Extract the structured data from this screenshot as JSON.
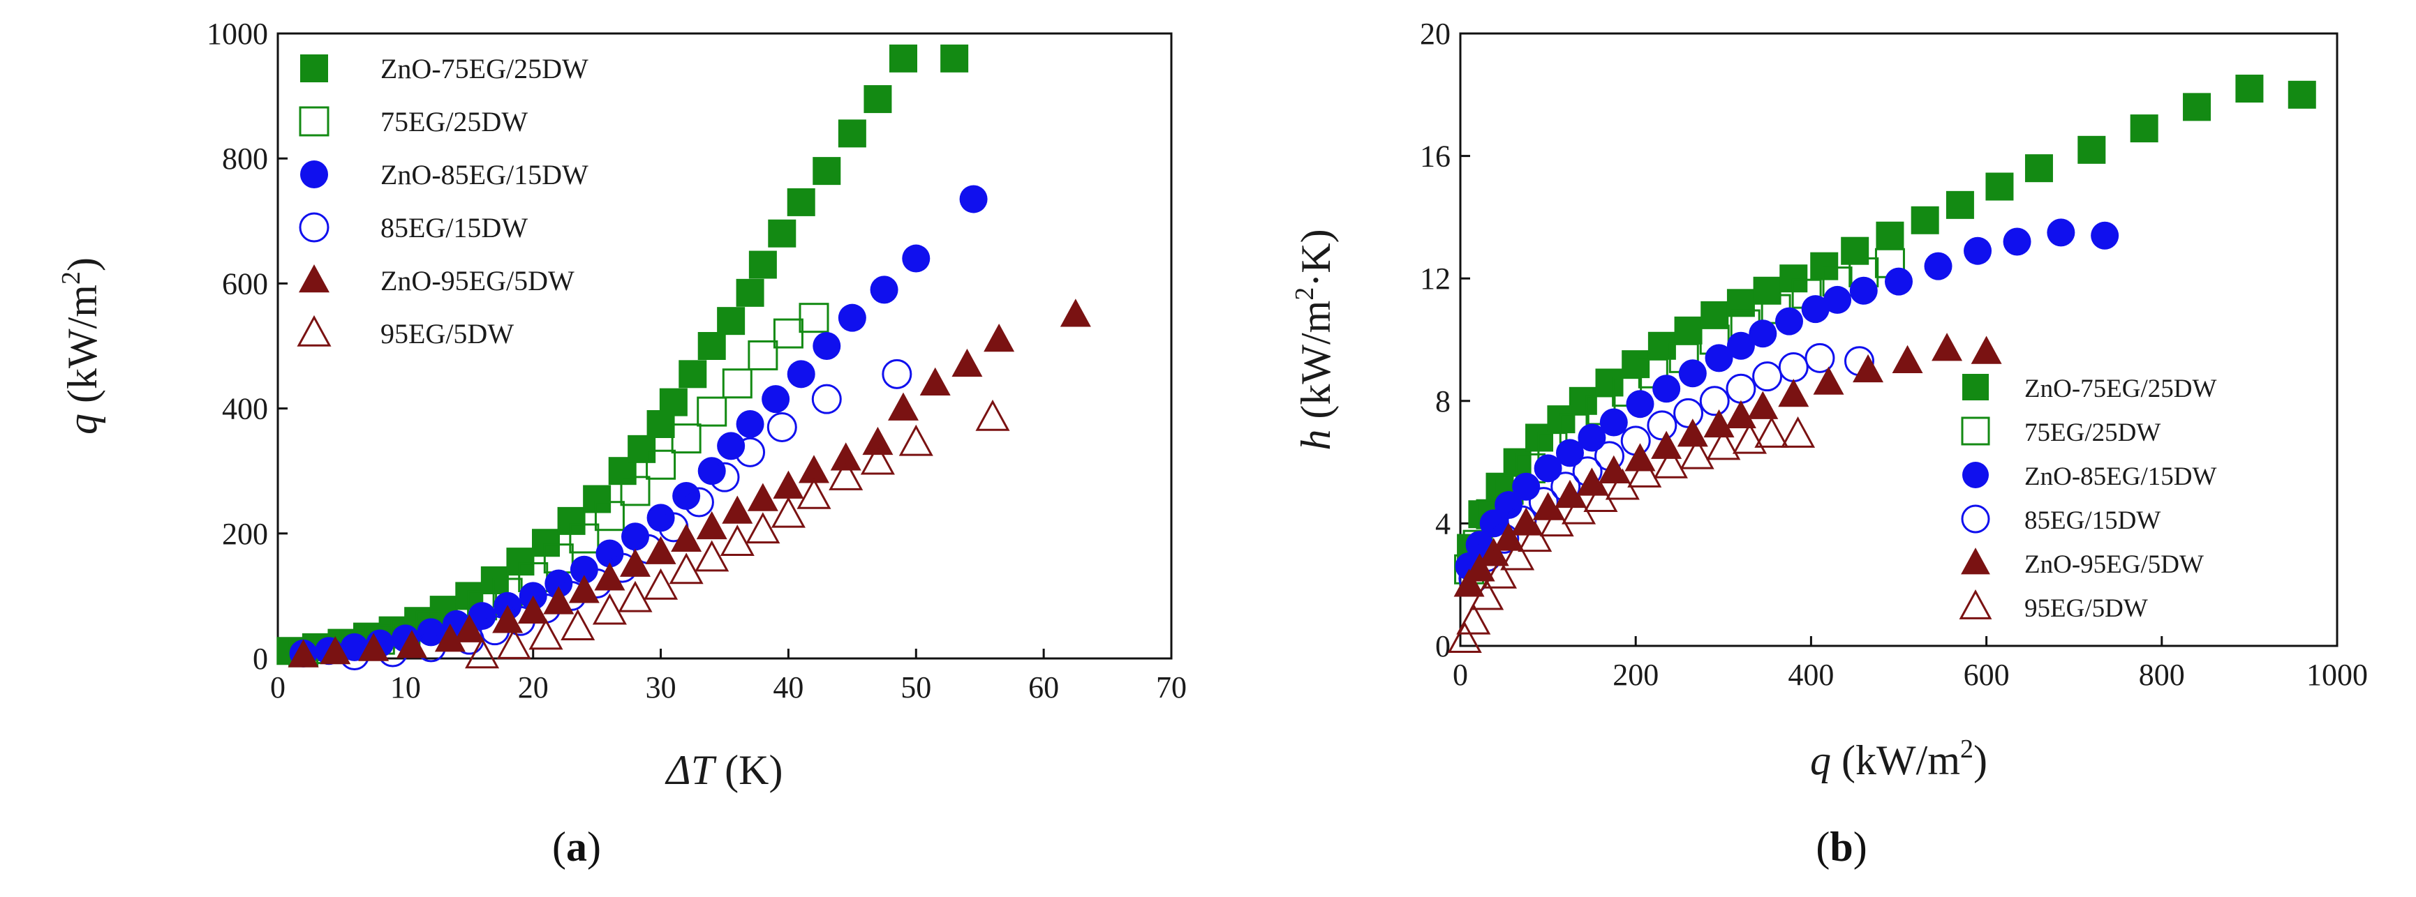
{
  "chart_data": [
    {
      "type": "scatter",
      "panel_label": "a",
      "xlabel_sym": "ΔT",
      "xlabel_unit": " (K)",
      "ylabel_sym": "q",
      "ylabel_pre": " (kW/m",
      "ylabel_sup": "2",
      "ylabel_post": ")",
      "xlim": [
        0,
        70
      ],
      "ylim": [
        0,
        1000
      ],
      "xticks": [
        0,
        10,
        20,
        30,
        40,
        50,
        60,
        70
      ],
      "yticks": [
        0,
        200,
        400,
        600,
        800,
        1000
      ],
      "legend_position": "top-left",
      "series": [
        {
          "name": "ZnO-75EG/25DW",
          "marker": "square",
          "filled": true,
          "color": "#138a13",
          "x": [
            1,
            3,
            5,
            7,
            9,
            11,
            13,
            15,
            17,
            19,
            21,
            23,
            25,
            27,
            28.5,
            30,
            31,
            32.5,
            34,
            35.5,
            37,
            38,
            39.5,
            41,
            43,
            45,
            47,
            49,
            53
          ],
          "y": [
            12,
            18,
            25,
            35,
            45,
            60,
            78,
            100,
            125,
            155,
            185,
            220,
            255,
            300,
            335,
            375,
            410,
            455,
            500,
            540,
            585,
            630,
            680,
            730,
            780,
            840,
            895,
            960,
            960
          ]
        },
        {
          "name": "75EG/25DW",
          "marker": "square",
          "filled": false,
          "color": "#138a13",
          "x": [
            2,
            4,
            6,
            8,
            10,
            12,
            14,
            16,
            18,
            20,
            22,
            24,
            26,
            28,
            30,
            32,
            34,
            36,
            38,
            40,
            42
          ],
          "y": [
            10,
            15,
            22,
            30,
            40,
            52,
            68,
            85,
            105,
            130,
            160,
            192,
            228,
            268,
            310,
            352,
            395,
            440,
            485,
            520,
            545
          ]
        },
        {
          "name": "ZnO-85EG/15DW",
          "marker": "circle",
          "filled": true,
          "color": "#1010ee",
          "x": [
            2,
            4,
            6,
            8,
            10,
            12,
            14,
            16,
            18,
            20,
            22,
            24,
            26,
            28,
            30,
            32,
            34,
            35.5,
            37,
            39,
            41,
            43,
            45,
            47.5,
            50,
            54.5
          ],
          "y": [
            8,
            12,
            18,
            24,
            32,
            42,
            55,
            68,
            84,
            100,
            120,
            142,
            168,
            195,
            225,
            260,
            300,
            340,
            375,
            415,
            455,
            500,
            545,
            590,
            640,
            735
          ]
        },
        {
          "name": "85EG/15DW",
          "marker": "circle",
          "filled": false,
          "color": "#1010ee",
          "x": [
            6,
            9,
            12,
            15,
            17,
            19,
            21,
            23,
            25,
            27,
            29,
            31,
            33,
            35,
            37,
            39.5,
            43,
            48.5
          ],
          "y": [
            5,
            10,
            18,
            30,
            45,
            60,
            80,
            100,
            120,
            145,
            175,
            210,
            250,
            290,
            330,
            370,
            415,
            455
          ]
        },
        {
          "name": "ZnO-95EG/5DW",
          "marker": "triangle",
          "filled": true,
          "color": "#7a1212",
          "x": [
            2,
            4.5,
            7.5,
            10.5,
            13.5,
            15,
            18,
            20,
            22,
            24,
            26,
            28,
            30,
            32,
            34,
            36,
            38,
            40,
            42,
            44.5,
            47,
            49,
            51.5,
            54,
            56.5,
            62.5
          ],
          "y": [
            5,
            10,
            15,
            20,
            30,
            45,
            60,
            75,
            90,
            108,
            128,
            150,
            170,
            190,
            210,
            235,
            255,
            275,
            300,
            320,
            345,
            400,
            440,
            470,
            510,
            550
          ]
        },
        {
          "name": "95EG/5DW",
          "marker": "triangle",
          "filled": false,
          "color": "#7a1212",
          "x": [
            16,
            18.5,
            21,
            23.5,
            26,
            28,
            30,
            32,
            34,
            36,
            38,
            40,
            42,
            44.5,
            47,
            50,
            56
          ],
          "y": [
            5,
            20,
            35,
            50,
            75,
            95,
            115,
            140,
            160,
            185,
            205,
            230,
            260,
            290,
            315,
            345,
            385
          ]
        }
      ]
    },
    {
      "type": "scatter",
      "panel_label": "b",
      "xlabel_sym": "q",
      "xlabel_pre": " (kW/m",
      "xlabel_sup": "2",
      "xlabel_post": ")",
      "ylabel_sym": "h",
      "ylabel_pre": " (kW/m",
      "ylabel_sup": "2",
      "ylabel_post": "·K)",
      "xlim": [
        0,
        1000
      ],
      "ylim": [
        0,
        20
      ],
      "xticks": [
        0,
        200,
        400,
        600,
        800,
        1000
      ],
      "yticks": [
        0,
        4,
        8,
        12,
        16,
        20
      ],
      "legend_position": "bottom-right",
      "series": [
        {
          "name": "ZnO-75EG/25DW",
          "marker": "square",
          "filled": true,
          "color": "#138a13",
          "x": [
            12,
            25,
            45,
            65,
            90,
            115,
            140,
            170,
            200,
            230,
            260,
            290,
            320,
            350,
            380,
            415,
            450,
            490,
            530,
            570,
            615,
            660,
            720,
            780,
            840,
            900,
            960
          ],
          "y": [
            3.2,
            4.3,
            5.2,
            6.0,
            6.8,
            7.4,
            8.0,
            8.6,
            9.2,
            9.8,
            10.3,
            10.8,
            11.2,
            11.6,
            12.0,
            12.4,
            12.9,
            13.4,
            13.9,
            14.4,
            15.0,
            15.6,
            16.2,
            16.9,
            17.6,
            18.2,
            18.0
          ]
        },
        {
          "name": "75EG/25DW",
          "marker": "square",
          "filled": false,
          "color": "#138a13",
          "x": [
            10,
            20,
            35,
            55,
            80,
            105,
            130,
            160,
            190,
            220,
            255,
            290,
            325,
            360,
            395,
            430,
            460,
            490
          ],
          "y": [
            2.5,
            3.3,
            4.3,
            5.1,
            5.8,
            6.5,
            7.1,
            7.7,
            8.3,
            8.9,
            9.4,
            10.0,
            10.5,
            11.0,
            11.5,
            11.9,
            12.2,
            12.5
          ]
        },
        {
          "name": "ZnO-85EG/15DW",
          "marker": "circle",
          "filled": true,
          "color": "#1010ee",
          "x": [
            10,
            22,
            38,
            55,
            75,
            100,
            125,
            150,
            175,
            205,
            235,
            265,
            295,
            320,
            345,
            375,
            405,
            430,
            460,
            500,
            545,
            590,
            635,
            685,
            735
          ],
          "y": [
            2.6,
            3.3,
            4.0,
            4.6,
            5.2,
            5.8,
            6.3,
            6.8,
            7.3,
            7.9,
            8.4,
            8.9,
            9.4,
            9.8,
            10.2,
            10.6,
            11.0,
            11.3,
            11.6,
            11.9,
            12.4,
            12.9,
            13.2,
            13.5,
            13.4
          ]
        },
        {
          "name": "85EG/15DW",
          "marker": "circle",
          "filled": false,
          "color": "#1010ee",
          "x": [
            15,
            30,
            50,
            70,
            95,
            120,
            145,
            170,
            200,
            230,
            260,
            290,
            320,
            350,
            380,
            410,
            455
          ],
          "y": [
            2.2,
            2.9,
            3.5,
            4.1,
            4.7,
            5.2,
            5.7,
            6.2,
            6.7,
            7.2,
            7.6,
            8.0,
            8.4,
            8.8,
            9.1,
            9.4,
            9.3
          ]
        },
        {
          "name": "ZnO-95EG/5DW",
          "marker": "triangle",
          "filled": true,
          "color": "#7a1212",
          "x": [
            10,
            22,
            38,
            55,
            75,
            100,
            125,
            150,
            175,
            205,
            235,
            265,
            295,
            320,
            345,
            380,
            420,
            465,
            510,
            555,
            600
          ],
          "y": [
            2.0,
            2.5,
            3.0,
            3.5,
            4.0,
            4.5,
            4.9,
            5.3,
            5.7,
            6.1,
            6.5,
            6.9,
            7.2,
            7.5,
            7.8,
            8.2,
            8.6,
            9.0,
            9.3,
            9.7,
            9.6
          ]
        },
        {
          "name": "95EG/5DW",
          "marker": "triangle",
          "filled": false,
          "color": "#7a1212",
          "x": [
            5,
            15,
            30,
            45,
            65,
            85,
            110,
            135,
            160,
            185,
            210,
            240,
            270,
            300,
            330,
            355,
            385
          ],
          "y": [
            0.2,
            0.8,
            1.6,
            2.3,
            2.9,
            3.5,
            4.0,
            4.4,
            4.8,
            5.2,
            5.6,
            5.9,
            6.2,
            6.5,
            6.7,
            6.9,
            6.9
          ]
        }
      ]
    }
  ]
}
